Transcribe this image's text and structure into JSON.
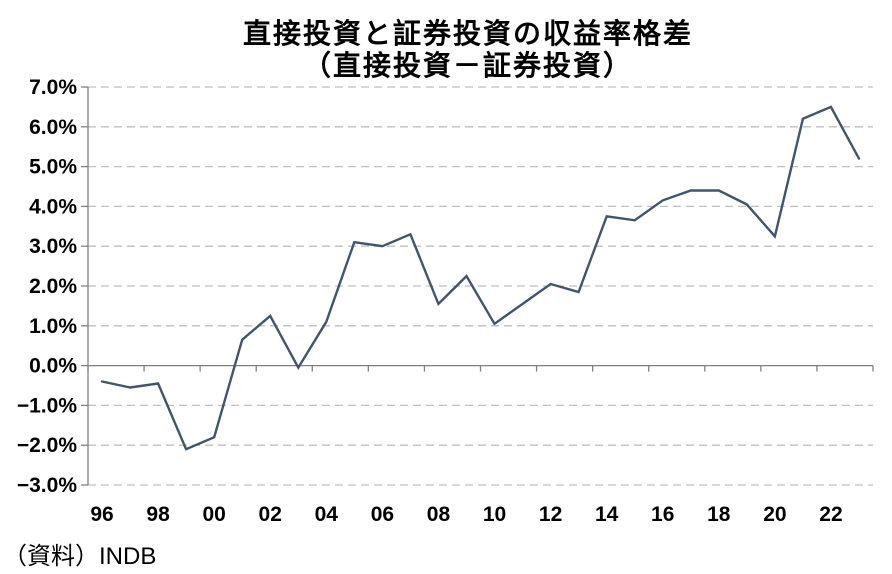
{
  "header": {
    "title": "直接投資と証券投資の収益率格差",
    "subtitle": "（直接投資－証券投資）"
  },
  "footer": {
    "source": "（資料）INDB"
  },
  "chart_data": {
    "type": "line",
    "title": "直接投資と証券投資の収益率格差",
    "subtitle": "（直接投資－証券投資）",
    "series_name": "直接投資－証券投資",
    "x": [
      1996,
      1997,
      1998,
      1999,
      2000,
      2001,
      2002,
      2003,
      2004,
      2005,
      2006,
      2007,
      2008,
      2009,
      2010,
      2011,
      2012,
      2013,
      2014,
      2015,
      2016,
      2017,
      2018,
      2019,
      2020,
      2021,
      2022,
      2023
    ],
    "values": [
      -0.4,
      -0.55,
      -0.45,
      -2.1,
      -1.8,
      0.65,
      1.25,
      -0.05,
      1.1,
      3.1,
      3.0,
      3.3,
      1.55,
      2.25,
      1.05,
      1.55,
      2.05,
      1.85,
      3.75,
      3.65,
      4.15,
      4.4,
      4.4,
      4.05,
      3.25,
      6.2,
      6.5,
      5.2
    ],
    "value_unit": "%",
    "ylim": [
      -3.0,
      7.0
    ],
    "y_tick_values": [
      7,
      6,
      5,
      4,
      3,
      2,
      1,
      0,
      -1,
      -2,
      -3
    ],
    "y_tick_labels": [
      "7.0%",
      "6.0%",
      "5.0%",
      "4.0%",
      "3.0%",
      "2.0%",
      "1.0%",
      "0.0%",
      "−1.0%",
      "−2.0%",
      "−3.0%"
    ],
    "x_tick_years": [
      1996,
      1998,
      2000,
      2002,
      2004,
      2006,
      2008,
      2010,
      2012,
      2014,
      2016,
      2018,
      2020,
      2022
    ],
    "x_tick_labels": [
      "96",
      "98",
      "00",
      "02",
      "04",
      "06",
      "08",
      "10",
      "12",
      "14",
      "16",
      "18",
      "20",
      "22"
    ],
    "grid": "horizontal-dashed",
    "legend": "none",
    "source": "（資料）INDB",
    "colors": {
      "line": "#44546A",
      "grid": "#BFBFBF",
      "axis": "#808080",
      "text": "#000000",
      "background": "#FFFFFF"
    }
  }
}
